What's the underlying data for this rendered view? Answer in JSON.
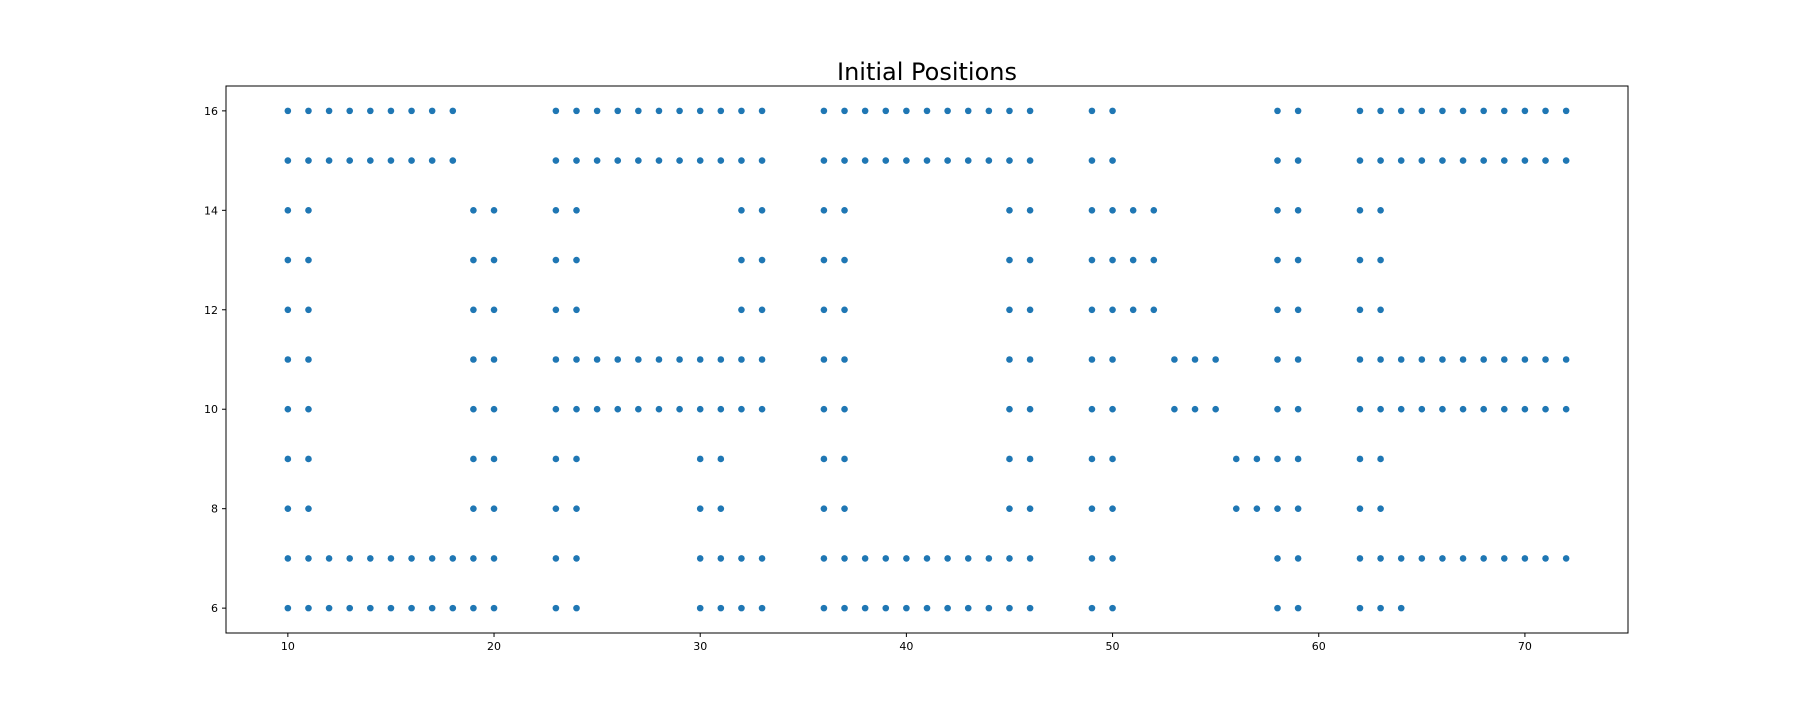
{
  "chart_data": {
    "type": "scatter",
    "title": "Initial Positions",
    "xlabel": "",
    "ylabel": "",
    "xlim": [
      7,
      75
    ],
    "ylim": [
      5.5,
      16.5
    ],
    "xticks": [
      10,
      20,
      30,
      40,
      50,
      60,
      70
    ],
    "yticks": [
      6,
      8,
      10,
      12,
      14,
      16
    ],
    "grid": false,
    "legend": "none",
    "series": [
      {
        "color": "#1f77b4",
        "points": [
          [
            10,
            16
          ],
          [
            11,
            16
          ],
          [
            12,
            16
          ],
          [
            13,
            16
          ],
          [
            14,
            16
          ],
          [
            15,
            16
          ],
          [
            16,
            16
          ],
          [
            17,
            16
          ],
          [
            18,
            16
          ],
          [
            10,
            15
          ],
          [
            11,
            15
          ],
          [
            12,
            15
          ],
          [
            13,
            15
          ],
          [
            14,
            15
          ],
          [
            15,
            15
          ],
          [
            16,
            15
          ],
          [
            17,
            15
          ],
          [
            18,
            15
          ],
          [
            10,
            14
          ],
          [
            11,
            14
          ],
          [
            19,
            14
          ],
          [
            20,
            14
          ],
          [
            10,
            13
          ],
          [
            11,
            13
          ],
          [
            19,
            13
          ],
          [
            20,
            13
          ],
          [
            10,
            12
          ],
          [
            11,
            12
          ],
          [
            19,
            12
          ],
          [
            20,
            12
          ],
          [
            10,
            11
          ],
          [
            11,
            11
          ],
          [
            19,
            11
          ],
          [
            20,
            11
          ],
          [
            10,
            10
          ],
          [
            11,
            10
          ],
          [
            19,
            10
          ],
          [
            20,
            10
          ],
          [
            10,
            9
          ],
          [
            11,
            9
          ],
          [
            19,
            9
          ],
          [
            20,
            9
          ],
          [
            10,
            8
          ],
          [
            11,
            8
          ],
          [
            19,
            8
          ],
          [
            20,
            8
          ],
          [
            10,
            7
          ],
          [
            11,
            7
          ],
          [
            12,
            7
          ],
          [
            13,
            7
          ],
          [
            14,
            7
          ],
          [
            15,
            7
          ],
          [
            16,
            7
          ],
          [
            17,
            7
          ],
          [
            18,
            7
          ],
          [
            19,
            7
          ],
          [
            20,
            7
          ],
          [
            10,
            6
          ],
          [
            11,
            6
          ],
          [
            12,
            6
          ],
          [
            13,
            6
          ],
          [
            14,
            6
          ],
          [
            15,
            6
          ],
          [
            16,
            6
          ],
          [
            17,
            6
          ],
          [
            18,
            6
          ],
          [
            19,
            6
          ],
          [
            20,
            6
          ],
          [
            23,
            16
          ],
          [
            24,
            16
          ],
          [
            25,
            16
          ],
          [
            26,
            16
          ],
          [
            27,
            16
          ],
          [
            28,
            16
          ],
          [
            29,
            16
          ],
          [
            30,
            16
          ],
          [
            31,
            16
          ],
          [
            32,
            16
          ],
          [
            33,
            16
          ],
          [
            23,
            15
          ],
          [
            24,
            15
          ],
          [
            25,
            15
          ],
          [
            26,
            15
          ],
          [
            27,
            15
          ],
          [
            28,
            15
          ],
          [
            29,
            15
          ],
          [
            30,
            15
          ],
          [
            31,
            15
          ],
          [
            32,
            15
          ],
          [
            33,
            15
          ],
          [
            23,
            14
          ],
          [
            24,
            14
          ],
          [
            32,
            14
          ],
          [
            33,
            14
          ],
          [
            23,
            13
          ],
          [
            24,
            13
          ],
          [
            32,
            13
          ],
          [
            33,
            13
          ],
          [
            23,
            12
          ],
          [
            24,
            12
          ],
          [
            32,
            12
          ],
          [
            33,
            12
          ],
          [
            23,
            11
          ],
          [
            24,
            11
          ],
          [
            25,
            11
          ],
          [
            26,
            11
          ],
          [
            27,
            11
          ],
          [
            28,
            11
          ],
          [
            29,
            11
          ],
          [
            30,
            11
          ],
          [
            31,
            11
          ],
          [
            32,
            11
          ],
          [
            33,
            11
          ],
          [
            23,
            10
          ],
          [
            24,
            10
          ],
          [
            25,
            10
          ],
          [
            26,
            10
          ],
          [
            27,
            10
          ],
          [
            28,
            10
          ],
          [
            29,
            10
          ],
          [
            30,
            10
          ],
          [
            31,
            10
          ],
          [
            32,
            10
          ],
          [
            33,
            10
          ],
          [
            23,
            9
          ],
          [
            24,
            9
          ],
          [
            30,
            9
          ],
          [
            31,
            9
          ],
          [
            23,
            8
          ],
          [
            24,
            8
          ],
          [
            30,
            8
          ],
          [
            31,
            8
          ],
          [
            23,
            7
          ],
          [
            24,
            7
          ],
          [
            30,
            7
          ],
          [
            31,
            7
          ],
          [
            32,
            7
          ],
          [
            33,
            7
          ],
          [
            23,
            6
          ],
          [
            24,
            6
          ],
          [
            30,
            6
          ],
          [
            31,
            6
          ],
          [
            32,
            6
          ],
          [
            33,
            6
          ],
          [
            36,
            16
          ],
          [
            37,
            16
          ],
          [
            38,
            16
          ],
          [
            39,
            16
          ],
          [
            40,
            16
          ],
          [
            41,
            16
          ],
          [
            42,
            16
          ],
          [
            43,
            16
          ],
          [
            44,
            16
          ],
          [
            45,
            16
          ],
          [
            46,
            16
          ],
          [
            36,
            15
          ],
          [
            37,
            15
          ],
          [
            38,
            15
          ],
          [
            39,
            15
          ],
          [
            40,
            15
          ],
          [
            41,
            15
          ],
          [
            42,
            15
          ],
          [
            43,
            15
          ],
          [
            44,
            15
          ],
          [
            45,
            15
          ],
          [
            46,
            15
          ],
          [
            36,
            14
          ],
          [
            37,
            14
          ],
          [
            45,
            14
          ],
          [
            46,
            14
          ],
          [
            36,
            13
          ],
          [
            37,
            13
          ],
          [
            45,
            13
          ],
          [
            46,
            13
          ],
          [
            36,
            12
          ],
          [
            37,
            12
          ],
          [
            45,
            12
          ],
          [
            46,
            12
          ],
          [
            36,
            11
          ],
          [
            37,
            11
          ],
          [
            45,
            11
          ],
          [
            46,
            11
          ],
          [
            36,
            10
          ],
          [
            37,
            10
          ],
          [
            45,
            10
          ],
          [
            46,
            10
          ],
          [
            36,
            9
          ],
          [
            37,
            9
          ],
          [
            45,
            9
          ],
          [
            46,
            9
          ],
          [
            36,
            8
          ],
          [
            37,
            8
          ],
          [
            45,
            8
          ],
          [
            46,
            8
          ],
          [
            36,
            7
          ],
          [
            37,
            7
          ],
          [
            38,
            7
          ],
          [
            39,
            7
          ],
          [
            40,
            7
          ],
          [
            41,
            7
          ],
          [
            42,
            7
          ],
          [
            43,
            7
          ],
          [
            44,
            7
          ],
          [
            45,
            7
          ],
          [
            46,
            7
          ],
          [
            36,
            6
          ],
          [
            37,
            6
          ],
          [
            38,
            6
          ],
          [
            39,
            6
          ],
          [
            40,
            6
          ],
          [
            41,
            6
          ],
          [
            42,
            6
          ],
          [
            43,
            6
          ],
          [
            44,
            6
          ],
          [
            45,
            6
          ],
          [
            46,
            6
          ],
          [
            49,
            16
          ],
          [
            50,
            16
          ],
          [
            49,
            15
          ],
          [
            50,
            15
          ],
          [
            49,
            14
          ],
          [
            50,
            14
          ],
          [
            51,
            14
          ],
          [
            52,
            14
          ],
          [
            49,
            13
          ],
          [
            50,
            13
          ],
          [
            51,
            13
          ],
          [
            52,
            13
          ],
          [
            49,
            12
          ],
          [
            50,
            12
          ],
          [
            51,
            12
          ],
          [
            52,
            12
          ],
          [
            49,
            11
          ],
          [
            50,
            11
          ],
          [
            53,
            11
          ],
          [
            54,
            11
          ],
          [
            55,
            11
          ],
          [
            49,
            10
          ],
          [
            50,
            10
          ],
          [
            53,
            10
          ],
          [
            54,
            10
          ],
          [
            55,
            10
          ],
          [
            49,
            9
          ],
          [
            50,
            9
          ],
          [
            56,
            9
          ],
          [
            57,
            9
          ],
          [
            49,
            8
          ],
          [
            50,
            8
          ],
          [
            56,
            8
          ],
          [
            57,
            8
          ],
          [
            49,
            7
          ],
          [
            50,
            7
          ],
          [
            49,
            6
          ],
          [
            50,
            6
          ],
          [
            58,
            16
          ],
          [
            59,
            16
          ],
          [
            58,
            15
          ],
          [
            59,
            15
          ],
          [
            58,
            14
          ],
          [
            59,
            14
          ],
          [
            58,
            13
          ],
          [
            59,
            13
          ],
          [
            58,
            12
          ],
          [
            59,
            12
          ],
          [
            58,
            11
          ],
          [
            59,
            11
          ],
          [
            58,
            10
          ],
          [
            59,
            10
          ],
          [
            58,
            9
          ],
          [
            59,
            9
          ],
          [
            58,
            8
          ],
          [
            59,
            8
          ],
          [
            58,
            7
          ],
          [
            59,
            7
          ],
          [
            58,
            6
          ],
          [
            59,
            6
          ],
          [
            62,
            16
          ],
          [
            63,
            16
          ],
          [
            64,
            16
          ],
          [
            65,
            16
          ],
          [
            66,
            16
          ],
          [
            67,
            16
          ],
          [
            68,
            16
          ],
          [
            69,
            16
          ],
          [
            70,
            16
          ],
          [
            71,
            16
          ],
          [
            72,
            16
          ],
          [
            62,
            15
          ],
          [
            63,
            15
          ],
          [
            64,
            15
          ],
          [
            65,
            15
          ],
          [
            66,
            15
          ],
          [
            67,
            15
          ],
          [
            68,
            15
          ],
          [
            69,
            15
          ],
          [
            70,
            15
          ],
          [
            71,
            15
          ],
          [
            72,
            15
          ],
          [
            62,
            14
          ],
          [
            63,
            14
          ],
          [
            62,
            13
          ],
          [
            63,
            13
          ],
          [
            62,
            12
          ],
          [
            63,
            12
          ],
          [
            62,
            11
          ],
          [
            63,
            11
          ],
          [
            64,
            11
          ],
          [
            65,
            11
          ],
          [
            66,
            11
          ],
          [
            67,
            11
          ],
          [
            68,
            11
          ],
          [
            69,
            11
          ],
          [
            70,
            11
          ],
          [
            71,
            11
          ],
          [
            72,
            11
          ],
          [
            62,
            10
          ],
          [
            63,
            10
          ],
          [
            64,
            10
          ],
          [
            65,
            10
          ],
          [
            66,
            10
          ],
          [
            67,
            10
          ],
          [
            68,
            10
          ],
          [
            69,
            10
          ],
          [
            70,
            10
          ],
          [
            71,
            10
          ],
          [
            72,
            10
          ],
          [
            62,
            9
          ],
          [
            63,
            9
          ],
          [
            62,
            8
          ],
          [
            63,
            8
          ],
          [
            62,
            7
          ],
          [
            63,
            7
          ],
          [
            64,
            7
          ],
          [
            65,
            7
          ],
          [
            66,
            7
          ],
          [
            67,
            7
          ],
          [
            68,
            7
          ],
          [
            69,
            7
          ],
          [
            70,
            7
          ],
          [
            71,
            7
          ],
          [
            72,
            7
          ],
          [
            62,
            6
          ],
          [
            63,
            6
          ],
          [
            64,
            6
          ]
        ]
      }
    ]
  }
}
